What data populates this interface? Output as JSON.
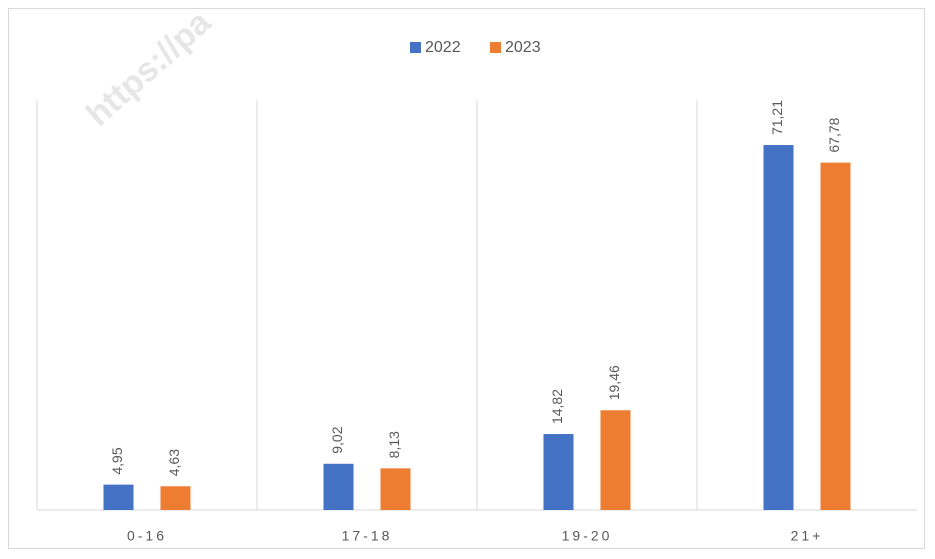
{
  "chart_data": {
    "type": "bar",
    "watermark": "https://pa",
    "categories": [
      "0-16",
      "17-18",
      "19-20",
      "21+"
    ],
    "series": [
      {
        "name": "2022",
        "color": "#4472c4",
        "values": [
          4.95,
          9.02,
          14.82,
          71.21
        ],
        "value_labels": [
          "4,95",
          "9,02",
          "14,82",
          "71,21"
        ]
      },
      {
        "name": "2023",
        "color": "#ed7d31",
        "values": [
          4.63,
          8.13,
          19.46,
          67.78
        ],
        "value_labels": [
          "4,63",
          "8,13",
          "19,46",
          "67,78"
        ]
      }
    ],
    "ylim": [
      0,
      80
    ],
    "legend": "top"
  }
}
